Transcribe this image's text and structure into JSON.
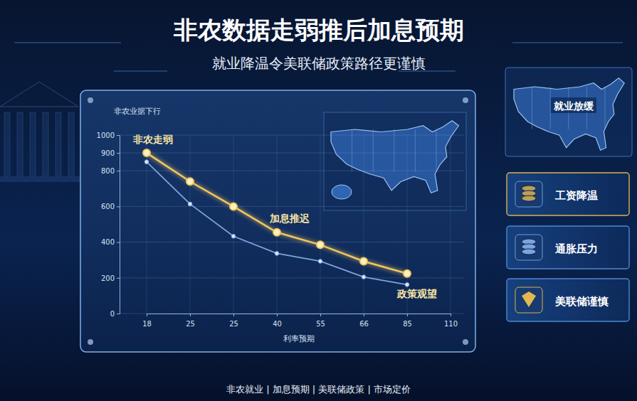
{
  "chart_data": {
    "type": "line",
    "title": "非农数据走弱推后加息预期",
    "subtitle": "就业降温令美联储政策路径更谨慎",
    "y_label": "非农业据下行",
    "x_label": "利率预期",
    "categories": [
      "18",
      "25",
      "25",
      "40",
      "55",
      "66",
      "85",
      "110"
    ],
    "series": [
      {
        "color": "#f0c75e",
        "marker": "circle",
        "line_style": "solid",
        "values": [
          900,
          740,
          600,
          455,
          385,
          293,
          224,
          null
        ]
      },
      {
        "color": "#7fa3d8",
        "marker": "circle",
        "line_style": "solid",
        "values": [
          850,
          614,
          433,
          337,
          293,
          205,
          162,
          null
        ]
      }
    ],
    "ylim": [
      0,
      1000
    ],
    "yticks": [
      0,
      200,
      400,
      600,
      800,
      900,
      1000
    ],
    "grid": true,
    "annotations": [
      {
        "text": "非农走弱",
        "series": 0,
        "point": 0
      },
      {
        "text": "加息推迟",
        "series": 0,
        "point": 3
      },
      {
        "text": "政策观望",
        "series": 0,
        "point": 6
      }
    ]
  },
  "side_panel": {
    "map_label": "就业放缓",
    "cards": [
      "工资降温",
      "通胀压力",
      "美联储谨慎"
    ]
  },
  "footer": "非农就业 | 加息预期 | 美联储政策 | 市场定价"
}
